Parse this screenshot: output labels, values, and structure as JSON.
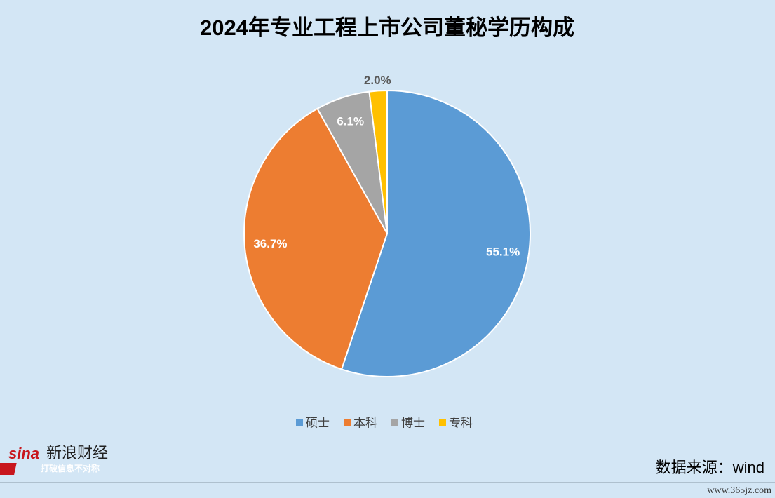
{
  "chart_data": {
    "type": "pie",
    "title": "2024年专业工程上市公司董秘学历构成",
    "categories": [
      "硕士",
      "本科",
      "博士",
      "专科"
    ],
    "values": [
      55.1,
      36.7,
      6.1,
      2.0
    ],
    "value_labels": [
      "55.1%",
      "36.7%",
      "6.1%",
      "2.0%"
    ],
    "colors": [
      "#5b9bd5",
      "#ed7d31",
      "#a5a5a5",
      "#ffc000"
    ],
    "legend": "bottom"
  },
  "source": "数据来源：wind",
  "logo": {
    "brand": "新浪财经",
    "slogan": "打破信息不对称"
  },
  "watermark": "www.365jz.com"
}
